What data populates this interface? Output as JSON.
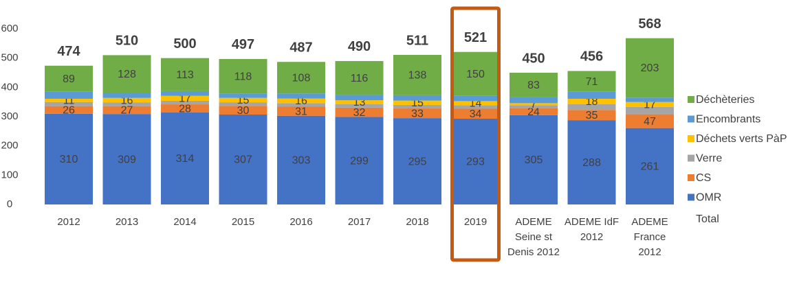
{
  "chart_data": {
    "type": "stacked_bar",
    "categories": [
      "2012",
      "2013",
      "2014",
      "2015",
      "2016",
      "2017",
      "2018",
      "2019",
      "ADEME Seine st Denis 2012",
      "ADEME IdF 2012",
      "ADEME France 2012"
    ],
    "series": [
      {
        "name": "OMR",
        "color": "#4472c4",
        "show_labels": true,
        "values": [
          310,
          309,
          314,
          307,
          303,
          299,
          295,
          293,
          305,
          288,
          261
        ]
      },
      {
        "name": "CS",
        "color": "#ed7d31",
        "show_labels": true,
        "values": [
          26,
          27,
          28,
          30,
          31,
          32,
          33,
          34,
          24,
          35,
          47
        ]
      },
      {
        "name": "Verre",
        "color": "#a5a5a5",
        "show_labels": false,
        "values": [
          14,
          12,
          12,
          12,
          12,
          12,
          12,
          12,
          10,
          20,
          25
        ]
      },
      {
        "name": "Déchets verts PàP",
        "color": "#ffc000",
        "show_labels": true,
        "values": [
          11,
          16,
          17,
          15,
          16,
          13,
          15,
          14,
          7,
          18,
          17
        ]
      },
      {
        "name": "Encombrants",
        "color": "#5b9bd5",
        "show_labels": false,
        "values": [
          24,
          18,
          16,
          15,
          17,
          18,
          18,
          18,
          21,
          24,
          15
        ]
      },
      {
        "name": "Déchèteries",
        "color": "#70ad47",
        "show_labels": true,
        "values": [
          89,
          128,
          113,
          118,
          108,
          116,
          138,
          150,
          83,
          71,
          203
        ]
      }
    ],
    "total": {
      "name": "Total",
      "values": [
        474,
        510,
        500,
        497,
        487,
        490,
        511,
        521,
        450,
        456,
        568
      ]
    },
    "highlight": "2019",
    "highlight_color": "#c55a11",
    "ylim": [
      0,
      600
    ],
    "yticks": [
      0,
      100,
      200,
      300,
      400,
      500,
      600
    ],
    "grid": false
  }
}
